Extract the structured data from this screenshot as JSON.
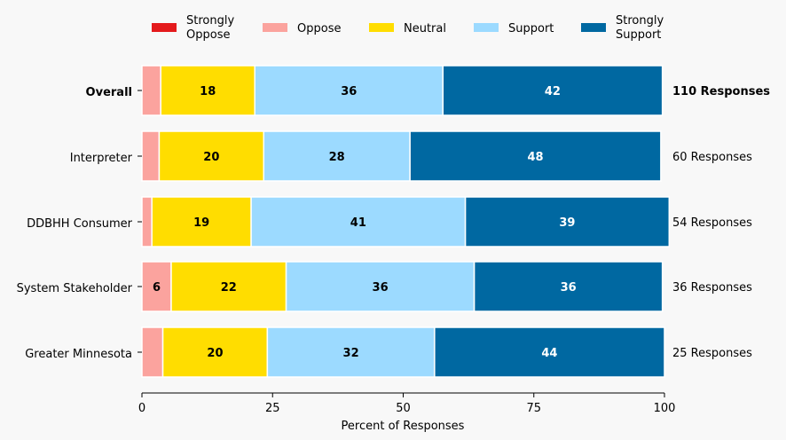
{
  "chart_data": {
    "type": "bar",
    "orientation": "horizontal-stacked",
    "categories": [
      "Overall",
      "Interpreter",
      "DDBHH Consumer",
      "System Stakeholder",
      "Greater Minnesota"
    ],
    "bold_categories": [
      "Overall"
    ],
    "series": [
      {
        "name": "Strongly Oppose",
        "label_lines": [
          "Strongly",
          "Oppose"
        ],
        "color": "#e41a1c",
        "label_color": "#000000",
        "values": [
          0,
          0,
          0,
          0,
          0
        ]
      },
      {
        "name": "Oppose",
        "label_lines": [
          "Oppose"
        ],
        "color": "#fba39e",
        "label_color": "#000000",
        "values": [
          3.6,
          3.3,
          1.9,
          5.6,
          4
        ]
      },
      {
        "name": "Neutral",
        "label_lines": [
          "Neutral"
        ],
        "color": "#ffdd00",
        "label_color": "#000000",
        "values": [
          18,
          20,
          19,
          22,
          20
        ]
      },
      {
        "name": "Support",
        "label_lines": [
          "Support"
        ],
        "color": "#9cdaff",
        "label_color": "#000000",
        "values": [
          36,
          28,
          41,
          36,
          32
        ]
      },
      {
        "name": "Strongly Support",
        "label_lines": [
          "Strongly",
          "Support"
        ],
        "color": "#0068a1",
        "label_color": "#ffffff",
        "values": [
          42,
          48,
          39,
          36,
          44
        ]
      }
    ],
    "data_labels": [
      [
        "",
        "",
        "18",
        "36",
        "42"
      ],
      [
        "",
        "",
        "20",
        "28",
        "48"
      ],
      [
        "",
        "",
        "19",
        "41",
        "39"
      ],
      [
        "",
        "6",
        "22",
        "36",
        "36"
      ],
      [
        "",
        "",
        "20",
        "32",
        "44"
      ]
    ],
    "response_labels": [
      "110 Responses",
      "60 Responses",
      "54 Responses",
      "36 Responses",
      "25 Responses"
    ],
    "xlabel": "Percent of Responses",
    "xlim": [
      0,
      100
    ],
    "xticks": [
      0,
      25,
      50,
      75,
      100
    ],
    "legend_position": "top"
  }
}
